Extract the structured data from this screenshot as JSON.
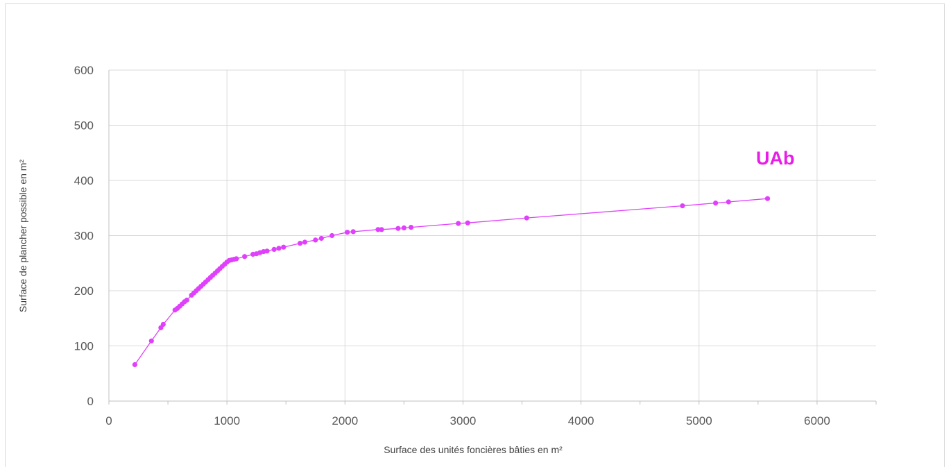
{
  "chart_data": {
    "type": "scatter",
    "xlabel": "Surface des unités foncières bâties en m²",
    "ylabel": "Surface de plancher possible en m²",
    "xlim": [
      0,
      6500
    ],
    "ylim": [
      0,
      600
    ],
    "x_ticks": [
      "0",
      "1000",
      "2000",
      "3000",
      "4000",
      "5000",
      "6000"
    ],
    "y_ticks": [
      "0",
      "100",
      "200",
      "300",
      "400",
      "500",
      "600"
    ],
    "grid": true,
    "legend": "none",
    "annotation": "UAb",
    "color": "#e040fb",
    "annotation_color": "#e61ee6",
    "series": [
      {
        "points": [
          [
            220,
            66
          ],
          [
            360,
            109
          ],
          [
            440,
            133
          ],
          [
            460,
            139
          ],
          [
            560,
            165
          ],
          [
            580,
            168
          ],
          [
            600,
            172
          ],
          [
            620,
            176
          ],
          [
            640,
            180
          ],
          [
            660,
            183
          ],
          [
            700,
            192
          ],
          [
            720,
            196
          ],
          [
            740,
            200
          ],
          [
            760,
            204
          ],
          [
            780,
            208
          ],
          [
            800,
            212
          ],
          [
            820,
            216
          ],
          [
            840,
            220
          ],
          [
            860,
            224
          ],
          [
            880,
            228
          ],
          [
            900,
            232
          ],
          [
            920,
            236
          ],
          [
            940,
            240
          ],
          [
            960,
            244
          ],
          [
            980,
            248
          ],
          [
            1000,
            252
          ],
          [
            1020,
            255
          ],
          [
            1040,
            256
          ],
          [
            1060,
            257
          ],
          [
            1080,
            258
          ],
          [
            1150,
            262
          ],
          [
            1220,
            266
          ],
          [
            1250,
            267
          ],
          [
            1280,
            269
          ],
          [
            1310,
            271
          ],
          [
            1340,
            272
          ],
          [
            1400,
            275
          ],
          [
            1440,
            277
          ],
          [
            1480,
            279
          ],
          [
            1620,
            286
          ],
          [
            1660,
            288
          ],
          [
            1750,
            292
          ],
          [
            1800,
            295
          ],
          [
            1890,
            300
          ],
          [
            2020,
            306
          ],
          [
            2070,
            307
          ],
          [
            2280,
            311
          ],
          [
            2310,
            311
          ],
          [
            2450,
            313
          ],
          [
            2500,
            314
          ],
          [
            2560,
            315
          ],
          [
            2960,
            322
          ],
          [
            3040,
            323
          ],
          [
            3540,
            332
          ],
          [
            4860,
            354
          ],
          [
            5140,
            359
          ],
          [
            5250,
            361
          ],
          [
            5580,
            367
          ]
        ]
      }
    ]
  }
}
